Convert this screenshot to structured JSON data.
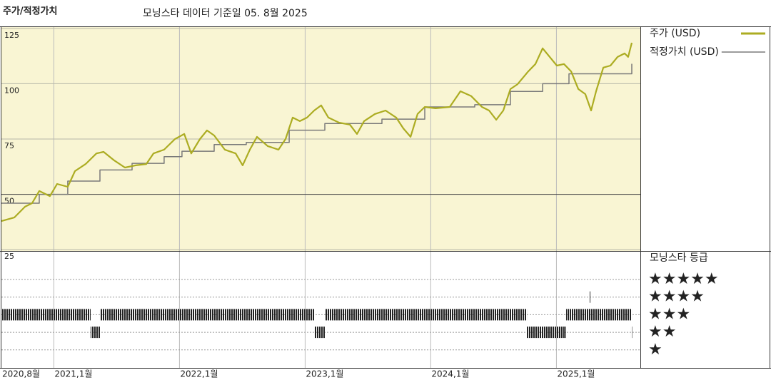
{
  "chart_data": {
    "type": "line",
    "title": "주가/적정가치",
    "subtitle": "모닝스타 데이터 기준일 05. 8월 2025",
    "xlim": [
      2020.583,
      2025.668
    ],
    "xticks": [
      {
        "value": 2020.583,
        "label": "2020,8월"
      },
      {
        "value": 2021,
        "label": "2021,1월"
      },
      {
        "value": 2022,
        "label": "2022,1월"
      },
      {
        "value": 2023,
        "label": "2023,1월"
      },
      {
        "value": 2024,
        "label": "2024,1월"
      },
      {
        "value": 2025,
        "label": "2025,1월"
      }
    ],
    "ylim": [
      24.4,
      125.6
    ],
    "yticks": [
      25,
      50,
      75,
      100,
      125
    ],
    "grid": true,
    "background": "#f9f5d3",
    "series": [
      {
        "name": "주가 (USD)",
        "color": "#acac22",
        "x": [
          2020.583,
          2020.685,
          2020.771,
          2020.827,
          2020.884,
          2020.969,
          2021.026,
          2021.111,
          2021.168,
          2021.253,
          2021.339,
          2021.396,
          2021.481,
          2021.566,
          2021.651,
          2021.736,
          2021.793,
          2021.878,
          2021.964,
          2022.038,
          2022.094,
          2022.163,
          2022.219,
          2022.276,
          2022.361,
          2022.447,
          2022.503,
          2022.56,
          2022.617,
          2022.702,
          2022.788,
          2022.844,
          2022.901,
          2022.958,
          2023.015,
          2023.072,
          2023.128,
          2023.185,
          2023.27,
          2023.356,
          2023.413,
          2023.469,
          2023.555,
          2023.64,
          2023.725,
          2023.782,
          2023.839,
          2023.895,
          2023.952,
          2024.038,
          2024.151,
          2024.236,
          2024.322,
          2024.407,
          2024.464,
          2024.521,
          2024.577,
          2024.634,
          2024.691,
          2024.776,
          2024.833,
          2024.89,
          2024.947,
          2025.003,
          2025.06,
          2025.117,
          2025.174,
          2025.23,
          2025.276,
          2025.316,
          2025.373,
          2025.43,
          2025.486,
          2025.543,
          2025.571,
          2025.6
        ],
        "values": [
          37.9,
          39.5,
          44.4,
          46,
          51.5,
          49.2,
          54.7,
          53.4,
          60.5,
          63.7,
          68.5,
          69.2,
          65.3,
          62.1,
          63.1,
          63.7,
          68.5,
          70.2,
          75,
          77.3,
          68.5,
          75,
          78.9,
          76.6,
          70.2,
          68.5,
          63.1,
          70.2,
          76,
          71.8,
          70.2,
          75,
          84.7,
          83.1,
          84.7,
          87.9,
          90.2,
          84.7,
          82.4,
          81.5,
          77.3,
          83.1,
          86.3,
          87.9,
          84.7,
          79.8,
          76,
          86.3,
          89.5,
          88.9,
          89.5,
          96.6,
          94.4,
          89.5,
          87.9,
          83.7,
          87.9,
          97.6,
          99.8,
          105.6,
          108.9,
          116,
          112.1,
          108.2,
          108.9,
          105.6,
          97.6,
          95.3,
          87.9,
          96.6,
          107.3,
          108.2,
          112.1,
          113.7,
          112.1,
          118.5
        ]
      },
      {
        "name": "적정가치 (USD)",
        "color": "#7a7a7a",
        "x": [
          2020.583,
          2020.884,
          2020.884,
          2021.111,
          2021.111,
          2021.367,
          2021.367,
          2021.623,
          2021.623,
          2021.878,
          2021.878,
          2022.02,
          2022.02,
          2022.276,
          2022.276,
          2022.532,
          2022.532,
          2022.873,
          2022.873,
          2023.157,
          2023.157,
          2023.611,
          2023.611,
          2023.952,
          2023.952,
          2024.35,
          2024.35,
          2024.634,
          2024.634,
          2024.89,
          2024.89,
          2025.1,
          2025.1,
          2025.6,
          2025.6
        ],
        "values": [
          46,
          46,
          50,
          50,
          56,
          56,
          61,
          61,
          64,
          64,
          67,
          67,
          69.5,
          69.5,
          72.5,
          72.5,
          73.5,
          73.5,
          79,
          79,
          82,
          82,
          84,
          84,
          89.5,
          89.5,
          90.5,
          90.5,
          96.5,
          96.5,
          100,
          100,
          104.5,
          104.5,
          109
        ]
      }
    ],
    "rating": {
      "title": "모닝스타 등급",
      "levels": [
        "★★★★★",
        "★★★★",
        "★★★",
        "★★",
        "★"
      ],
      "periods": [
        {
          "start": 2020.583,
          "end": 2021.293,
          "stars": 3
        },
        {
          "start": 2021.293,
          "end": 2021.367,
          "stars": 2
        },
        {
          "start": 2021.367,
          "end": 2023.072,
          "stars": 3
        },
        {
          "start": 2023.072,
          "end": 2023.157,
          "stars": 2
        },
        {
          "start": 2023.157,
          "end": 2024.765,
          "stars": 3
        },
        {
          "start": 2024.765,
          "end": 2025.077,
          "stars": 2
        },
        {
          "start": 2025.077,
          "end": 2025.6,
          "stars": 3
        },
        {
          "start": 2025.265,
          "end": 2025.272,
          "stars": 4
        },
        {
          "start": 2025.594,
          "end": 2025.6,
          "stars": 2
        }
      ]
    }
  }
}
